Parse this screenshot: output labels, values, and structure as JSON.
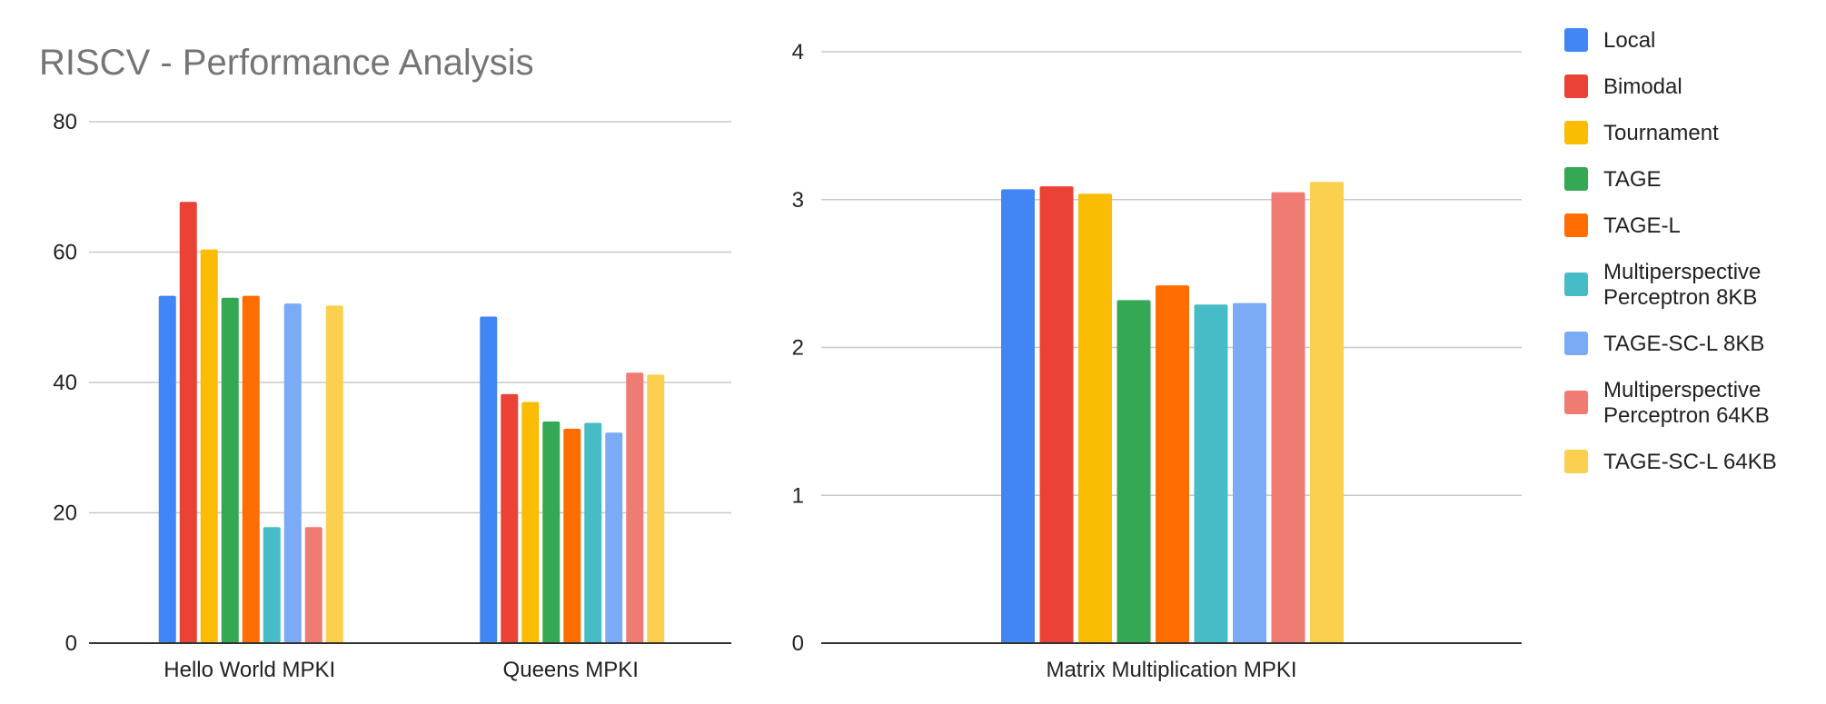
{
  "title": "RISCV - Performance Analysis",
  "colors": {
    "Local": "#4285f4",
    "Bimodal": "#ea4335",
    "Tournament": "#fbbc04",
    "TAGE": "#34a853",
    "TAGE-L": "#ff6d01",
    "Multiperspective Perceptron 8KB": "#46bdc6",
    "TAGE-SC-L 8KB": "#7baaf7",
    "Multiperspective Perceptron 64KB": "#f07b72",
    "TAGE-SC-L 64KB": "#fcd04f"
  },
  "legend": [
    {
      "name": "Local",
      "lines": [
        "Local"
      ]
    },
    {
      "name": "Bimodal",
      "lines": [
        "Bimodal"
      ]
    },
    {
      "name": "Tournament",
      "lines": [
        "Tournament"
      ]
    },
    {
      "name": "TAGE",
      "lines": [
        "TAGE"
      ]
    },
    {
      "name": "TAGE-L",
      "lines": [
        "TAGE-L"
      ]
    },
    {
      "name": "Multiperspective Perceptron 8KB",
      "lines": [
        "Multiperspective",
        "Perceptron 8KB"
      ]
    },
    {
      "name": "TAGE-SC-L 8KB",
      "lines": [
        "TAGE-SC-L 8KB"
      ]
    },
    {
      "name": "Multiperspective Perceptron 64KB",
      "lines": [
        "Multiperspective",
        "Perceptron 64KB"
      ]
    },
    {
      "name": "TAGE-SC-L 64KB",
      "lines": [
        "TAGE-SC-L 64KB"
      ]
    }
  ],
  "chart_data": [
    {
      "type": "bar",
      "title": "RISCV - Performance Analysis",
      "categories": [
        "Hello World MPKI",
        "Queens MPKI"
      ],
      "ylim": [
        0,
        80
      ],
      "yticks": [
        0,
        20,
        40,
        60,
        80
      ],
      "grid": true,
      "legend_position": "right",
      "series": [
        {
          "name": "Local",
          "values": [
            53.3,
            50.1
          ]
        },
        {
          "name": "Bimodal",
          "values": [
            67.7,
            38.2
          ]
        },
        {
          "name": "Tournament",
          "values": [
            60.4,
            37.0
          ]
        },
        {
          "name": "TAGE",
          "values": [
            53.0,
            34.0
          ]
        },
        {
          "name": "TAGE-L",
          "values": [
            53.3,
            32.9
          ]
        },
        {
          "name": "Multiperspective Perceptron 8KB",
          "values": [
            17.8,
            33.8
          ]
        },
        {
          "name": "TAGE-SC-L 8KB",
          "values": [
            52.1,
            32.3
          ]
        },
        {
          "name": "Multiperspective Perceptron 64KB",
          "values": [
            17.8,
            41.5
          ]
        },
        {
          "name": "TAGE-SC-L 64KB",
          "values": [
            51.8,
            41.2
          ]
        }
      ]
    },
    {
      "type": "bar",
      "categories": [
        "Matrix Multiplication MPKI"
      ],
      "ylim": [
        0,
        4
      ],
      "yticks": [
        0,
        1,
        2,
        3,
        4
      ],
      "grid": true,
      "legend_position": "right",
      "series": [
        {
          "name": "Local",
          "values": [
            3.07
          ]
        },
        {
          "name": "Bimodal",
          "values": [
            3.09
          ]
        },
        {
          "name": "Tournament",
          "values": [
            3.04
          ]
        },
        {
          "name": "TAGE",
          "values": [
            2.32
          ]
        },
        {
          "name": "TAGE-L",
          "values": [
            2.42
          ]
        },
        {
          "name": "Multiperspective Perceptron 8KB",
          "values": [
            2.29
          ]
        },
        {
          "name": "TAGE-SC-L 8KB",
          "values": [
            2.3
          ]
        },
        {
          "name": "Multiperspective Perceptron 64KB",
          "values": [
            3.05
          ]
        },
        {
          "name": "TAGE-SC-L 64KB",
          "values": [
            3.12
          ]
        }
      ]
    }
  ]
}
